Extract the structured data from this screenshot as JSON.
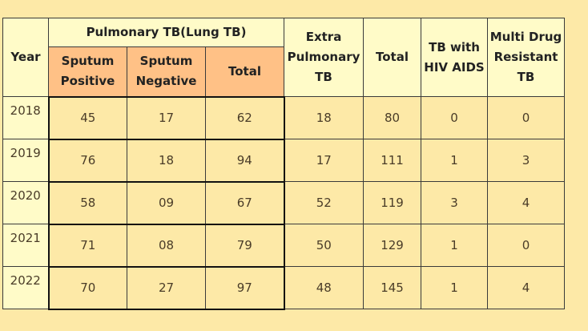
{
  "table": {
    "headers": {
      "year": "Year",
      "pulmonary": "Pulmonary TB(Lung TB)",
      "sputum_positive": [
        "Sputum",
        "Positive"
      ],
      "sputum_negative": [
        "Sputum",
        "Negative"
      ],
      "pulmonary_total": "Total",
      "extra_pulmonary": [
        "Extra",
        "Pulmonary",
        "TB"
      ],
      "total": "Total",
      "tb_hiv": [
        "TB with",
        "HIV AIDS"
      ],
      "mdr": [
        "Multi Drug",
        "Resistant",
        "TB"
      ]
    },
    "rows": [
      {
        "year": "2018",
        "sputum_positive": "45",
        "sputum_negative": "17",
        "pulmonary_total": "62",
        "extra_pulmonary": "18",
        "total": "80",
        "tb_hiv": "0",
        "mdr": "0"
      },
      {
        "year": "2019",
        "sputum_positive": "76",
        "sputum_negative": "18",
        "pulmonary_total": "94",
        "extra_pulmonary": "17",
        "total": "111",
        "tb_hiv": "1",
        "mdr": "3"
      },
      {
        "year": "2020",
        "sputum_positive": "58",
        "sputum_negative": "09",
        "pulmonary_total": "67",
        "extra_pulmonary": "52",
        "total": "119",
        "tb_hiv": "3",
        "mdr": "4"
      },
      {
        "year": "2021",
        "sputum_positive": "71",
        "sputum_negative": "08",
        "pulmonary_total": "79",
        "extra_pulmonary": "50",
        "total": "129",
        "tb_hiv": "1",
        "mdr": "0"
      },
      {
        "year": "2022",
        "sputum_positive": "70",
        "sputum_negative": "27",
        "pulmonary_total": "97",
        "extra_pulmonary": "48",
        "total": "145",
        "tb_hiv": "1",
        "mdr": "4"
      }
    ]
  }
}
